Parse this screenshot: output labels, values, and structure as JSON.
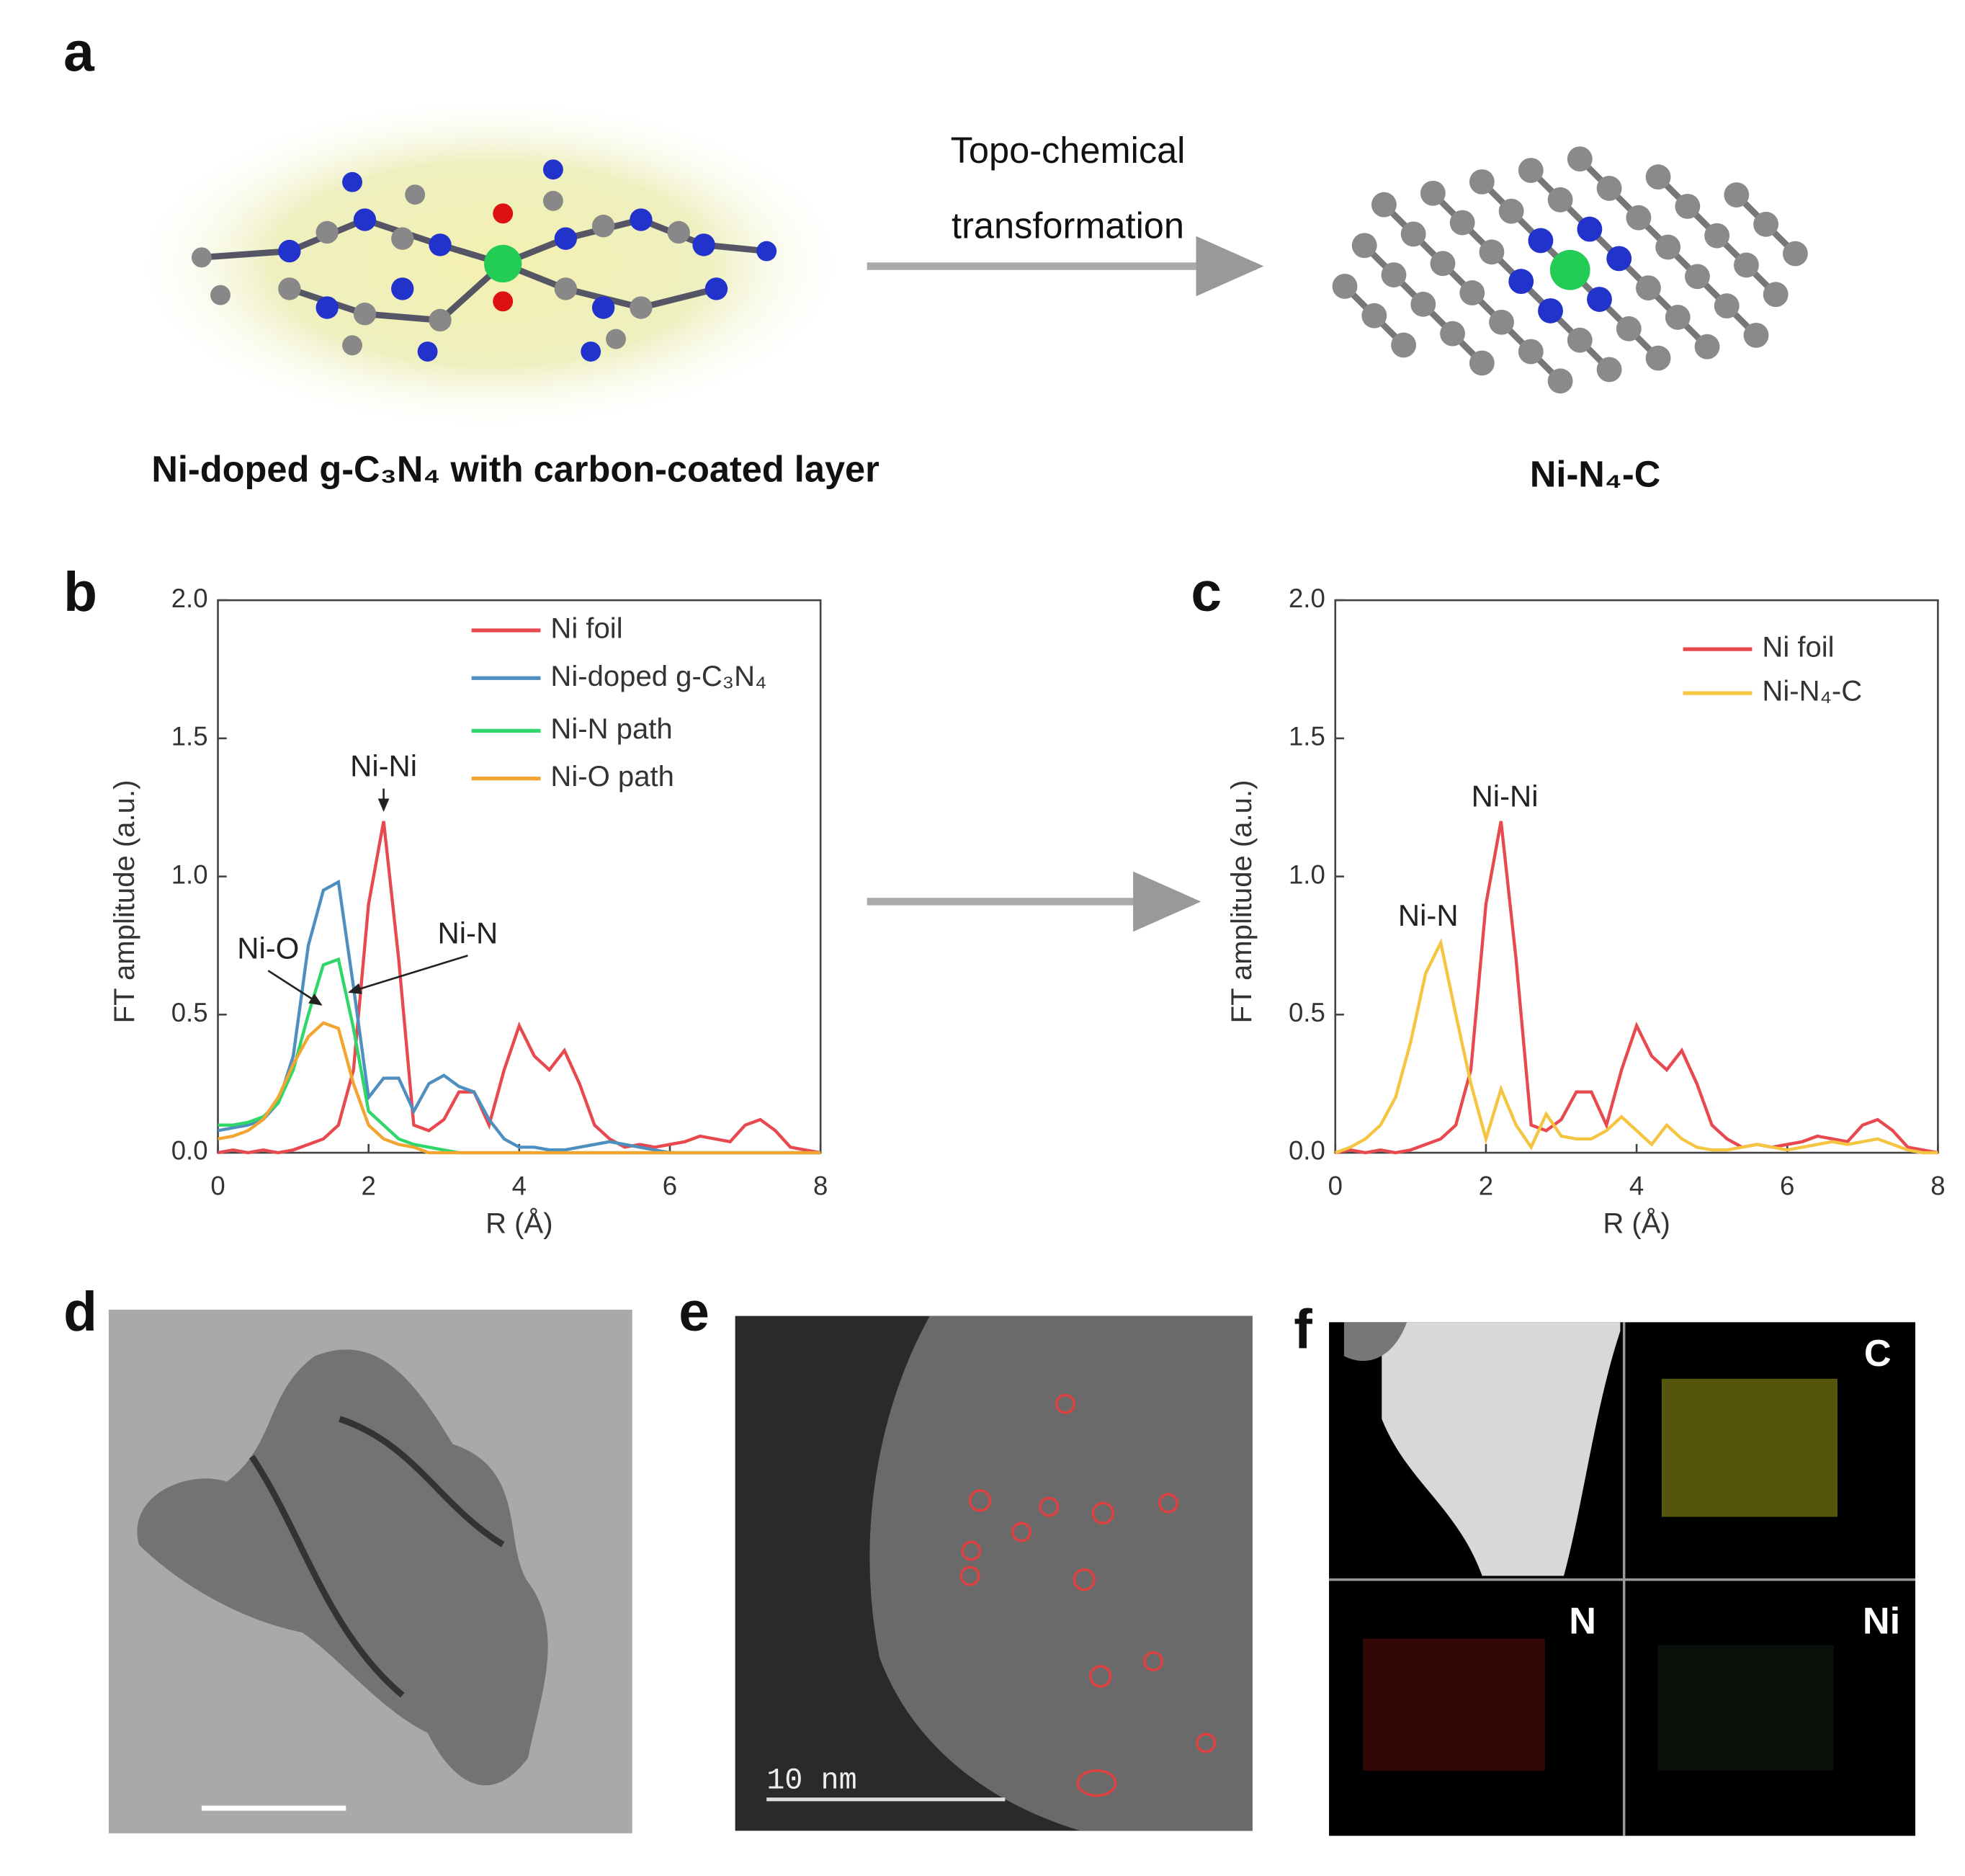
{
  "panel_labels": [
    "a",
    "b",
    "c",
    "d",
    "e",
    "f"
  ],
  "schematic": {
    "arrow_label": [
      "Topo-chemical",
      "transformation"
    ],
    "left_label": "Ni-doped g-C₃N₄ with carbon-coated layer",
    "right_label": "Ni-N₄-C"
  },
  "micrographs": {
    "scale_bar_label": "10 nm",
    "eds_labels": [
      "C",
      "N",
      "Ni"
    ]
  },
  "chart_data": [
    {
      "type": "line",
      "x_label": "R (Å)",
      "y_label": "FT amplitude (a.u.)",
      "annotations": [
        "Ni-Ni",
        "Ni-N",
        "Ni-O"
      ],
      "x": [
        0,
        0.2,
        0.4,
        0.6,
        0.8,
        1.0,
        1.2,
        1.4,
        1.6,
        1.8,
        2.0,
        2.2,
        2.4,
        2.6,
        2.8,
        3.0,
        3.2,
        3.4,
        3.6,
        3.8,
        4.0,
        4.2,
        4.4,
        4.6,
        4.8,
        5.0,
        5.2,
        5.4,
        5.6,
        5.8,
        6.0,
        6.2,
        6.4,
        6.6,
        6.8,
        7.0,
        7.2,
        7.4,
        7.6,
        7.8,
        8.0
      ],
      "series": [
        {
          "name": "Ni foil",
          "color": "#e8494f",
          "values": [
            0,
            0.01,
            0,
            0.01,
            0,
            0.01,
            0.03,
            0.05,
            0.1,
            0.3,
            0.9,
            1.2,
            0.7,
            0.1,
            0.08,
            0.12,
            0.22,
            0.22,
            0.1,
            0.3,
            0.46,
            0.35,
            0.3,
            0.37,
            0.25,
            0.1,
            0.05,
            0.02,
            0.03,
            0.02,
            0.03,
            0.04,
            0.06,
            0.05,
            0.04,
            0.1,
            0.12,
            0.08,
            0.02,
            0.01,
            0
          ]
        },
        {
          "name": "Ni-doped g-C₃N₄",
          "color": "#4f8fc0",
          "values": [
            0.08,
            0.09,
            0.1,
            0.12,
            0.18,
            0.35,
            0.75,
            0.95,
            0.98,
            0.6,
            0.2,
            0.27,
            0.27,
            0.15,
            0.25,
            0.28,
            0.24,
            0.22,
            0.12,
            0.05,
            0.02,
            0.02,
            0.01,
            0.01,
            0.02,
            0.03,
            0.04,
            0.03,
            0.02,
            0.01,
            0,
            0,
            0,
            0,
            0,
            0,
            0,
            0,
            0,
            0,
            0
          ]
        },
        {
          "name": "Ni-N path",
          "color": "#2fd66a",
          "values": [
            0.1,
            0.1,
            0.11,
            0.13,
            0.18,
            0.3,
            0.5,
            0.68,
            0.7,
            0.45,
            0.15,
            0.1,
            0.05,
            0.03,
            0.02,
            0.01,
            0,
            0,
            0,
            0,
            0,
            0,
            0,
            0,
            0,
            0,
            0,
            0,
            0,
            0,
            0,
            0,
            0,
            0,
            0,
            0,
            0,
            0,
            0,
            0,
            0
          ]
        },
        {
          "name": "Ni-O path",
          "color": "#f2a531",
          "values": [
            0.05,
            0.06,
            0.08,
            0.12,
            0.2,
            0.32,
            0.42,
            0.47,
            0.45,
            0.25,
            0.1,
            0.05,
            0.03,
            0.02,
            0,
            0,
            0,
            0,
            0,
            0,
            0,
            0,
            0,
            0,
            0,
            0,
            0,
            0,
            0,
            0,
            0,
            0,
            0,
            0,
            0,
            0,
            0,
            0,
            0,
            0,
            0
          ]
        }
      ],
      "xlim": [
        0,
        8
      ],
      "ylim": [
        0,
        2
      ],
      "xticks": [
        0,
        2,
        4,
        6,
        8
      ],
      "yticks": [
        {
          "value": 0,
          "label": "0.0"
        },
        {
          "value": 0.5,
          "label": "0.5"
        },
        {
          "value": 1,
          "label": "1.0"
        },
        {
          "value": 1.5,
          "label": "1.5"
        },
        {
          "value": 2,
          "label": "2.0"
        }
      ],
      "legend": "upper right"
    },
    {
      "type": "line",
      "x_label": "R (Å)",
      "y_label": "FT amplitude (a.u.)",
      "annotations": [
        "Ni-N",
        "Ni-Ni"
      ],
      "x": [
        0,
        0.2,
        0.4,
        0.6,
        0.8,
        1.0,
        1.2,
        1.4,
        1.6,
        1.8,
        2.0,
        2.2,
        2.4,
        2.6,
        2.8,
        3.0,
        3.2,
        3.4,
        3.6,
        3.8,
        4.0,
        4.2,
        4.4,
        4.6,
        4.8,
        5.0,
        5.2,
        5.4,
        5.6,
        5.8,
        6.0,
        6.2,
        6.4,
        6.6,
        6.8,
        7.0,
        7.2,
        7.4,
        7.6,
        7.8,
        8.0
      ],
      "series": [
        {
          "name": "Ni foil",
          "color": "#e8494f",
          "values": [
            0,
            0.01,
            0,
            0.01,
            0,
            0.01,
            0.03,
            0.05,
            0.1,
            0.3,
            0.9,
            1.2,
            0.7,
            0.1,
            0.08,
            0.12,
            0.22,
            0.22,
            0.1,
            0.3,
            0.46,
            0.35,
            0.3,
            0.37,
            0.25,
            0.1,
            0.05,
            0.02,
            0.03,
            0.02,
            0.03,
            0.04,
            0.06,
            0.05,
            0.04,
            0.1,
            0.12,
            0.08,
            0.02,
            0.01,
            0
          ]
        },
        {
          "name": "Ni-N₄-C",
          "color": "#f5c542",
          "values": [
            0,
            0.02,
            0.05,
            0.1,
            0.2,
            0.4,
            0.65,
            0.76,
            0.5,
            0.25,
            0.05,
            0.23,
            0.1,
            0.02,
            0.14,
            0.06,
            0.05,
            0.05,
            0.08,
            0.13,
            0.08,
            0.03,
            0.1,
            0.05,
            0.02,
            0.01,
            0.01,
            0.02,
            0.03,
            0.02,
            0.01,
            0.02,
            0.03,
            0.04,
            0.03,
            0.04,
            0.05,
            0.03,
            0.01,
            0,
            0
          ]
        }
      ],
      "xlim": [
        0,
        8
      ],
      "ylim": [
        0,
        2
      ],
      "xticks": [
        0,
        2,
        4,
        6,
        8
      ],
      "yticks": [
        {
          "value": 0,
          "label": "0.0"
        },
        {
          "value": 0.5,
          "label": "0.5"
        },
        {
          "value": 1,
          "label": "1.0"
        },
        {
          "value": 1.5,
          "label": "1.5"
        },
        {
          "value": 2,
          "label": "2.0"
        }
      ],
      "legend": "upper right"
    }
  ]
}
